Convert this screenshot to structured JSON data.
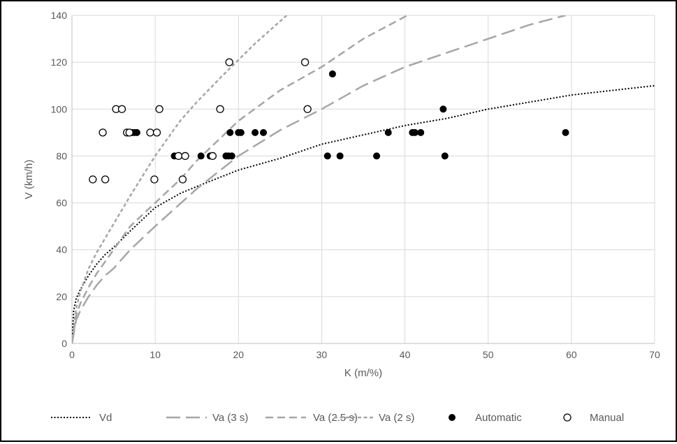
{
  "chart_data": {
    "type": "scatter",
    "title": "",
    "xlabel": "K (m/%)",
    "ylabel": "V (km/h)",
    "xlim": [
      0,
      70
    ],
    "ylim": [
      0,
      140
    ],
    "x_ticks": [
      "0",
      "10",
      "20",
      "30",
      "40",
      "50",
      "60",
      "70"
    ],
    "y_ticks": [
      "0",
      "20",
      "40",
      "60",
      "80",
      "100",
      "120",
      "140"
    ],
    "grid": true,
    "legend_position": "bottom",
    "series": [
      {
        "name": "Vd",
        "kind": "line",
        "style": "dotted",
        "color": "#000000",
        "x": [
          0,
          0.2,
          0.5,
          1,
          2,
          3,
          4,
          5,
          7,
          10,
          13,
          15,
          20,
          25,
          30,
          35,
          40,
          45,
          50,
          55,
          60,
          65,
          70
        ],
        "y": [
          0,
          14,
          19,
          23,
          29,
          34,
          38,
          41,
          48,
          58,
          64,
          67,
          74,
          79,
          85,
          89,
          93,
          96,
          100,
          103,
          106,
          108,
          110
        ]
      },
      {
        "name": "Va (3 s)",
        "kind": "line",
        "style": "long-dash",
        "color": "#a6a6a6",
        "x": [
          0,
          0.5,
          1,
          2,
          3,
          4,
          5,
          7,
          10,
          15,
          20,
          25,
          30,
          35,
          40,
          45,
          50,
          55,
          59.3
        ],
        "y": [
          0,
          10,
          14,
          20,
          25,
          29,
          32,
          40,
          50,
          66,
          80,
          91,
          100,
          110,
          118,
          124,
          130,
          136,
          140
        ]
      },
      {
        "name": "Va (2.5 s)",
        "kind": "line",
        "style": "dash",
        "color": "#a6a6a6",
        "x": [
          0,
          0.5,
          1,
          2,
          3,
          4,
          5,
          7,
          10,
          13,
          15,
          20,
          25,
          30,
          35,
          40.3
        ],
        "y": [
          0,
          12,
          17,
          24,
          30,
          35,
          40,
          50,
          60,
          70,
          78,
          95,
          108,
          118,
          130,
          140
        ]
      },
      {
        "name": "Va (2 s)",
        "kind": "line",
        "style": "short-dash",
        "color": "#a6a6a6",
        "x": [
          0,
          0.5,
          1,
          2,
          3,
          4,
          5,
          7,
          10,
          13,
          15,
          18,
          20,
          22,
          25.8
        ],
        "y": [
          0,
          15,
          22,
          32,
          39,
          45,
          51,
          63,
          80,
          95,
          103,
          114,
          121,
          128,
          140
        ]
      },
      {
        "name": "Automatic",
        "kind": "points",
        "marker": "filled-circle",
        "color": "#000000",
        "x": [
          7,
          7.2,
          7.5,
          7.8,
          12.3,
          15.5,
          16.6,
          18.5,
          18.8,
          19,
          19.2,
          20,
          20.3,
          22,
          23,
          30.7,
          31.3,
          32.2,
          36.6,
          38,
          40.9,
          41.2,
          41.9,
          44.6,
          44.8,
          59.3
        ],
        "y": [
          90,
          90,
          90,
          90,
          80,
          80,
          80,
          80,
          80,
          90,
          80,
          90,
          90,
          90,
          90,
          80,
          115,
          80,
          80,
          90,
          90,
          90,
          90,
          100,
          80,
          90
        ]
      },
      {
        "name": "Manual",
        "kind": "points",
        "marker": "open-circle",
        "color": "#000000",
        "x": [
          2.5,
          3.7,
          4,
          5.3,
          6,
          6.6,
          6.9,
          9.4,
          9.9,
          10.2,
          10.5,
          12.8,
          13.3,
          13.6,
          16.9,
          17.8,
          18.9,
          28,
          28.3
        ],
        "y": [
          70,
          90,
          70,
          100,
          100,
          90,
          90,
          90,
          70,
          90,
          100,
          80,
          70,
          80,
          80,
          100,
          120,
          120,
          100
        ]
      }
    ]
  }
}
